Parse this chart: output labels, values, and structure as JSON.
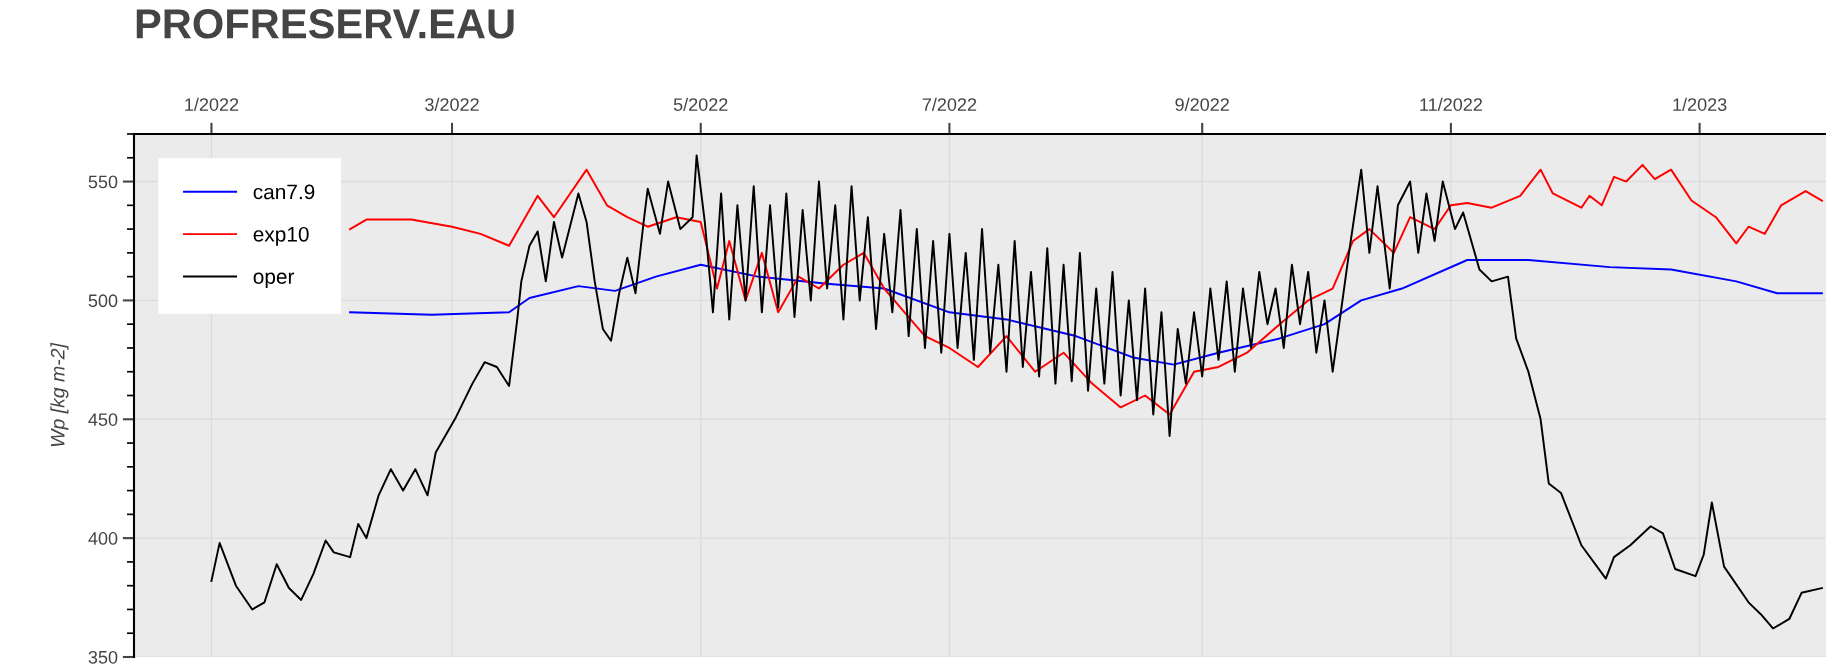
{
  "chart_data": {
    "type": "line",
    "title": "PROFRESERV.EAU",
    "ylabel": "Wp [kg m-2]",
    "xlim": [
      "2021-12-13",
      "2023-02-01"
    ],
    "xticks": [
      {
        "value": "2022-01-01",
        "label": "1/2022"
      },
      {
        "value": "2022-03-01",
        "label": "3/2022"
      },
      {
        "value": "2022-05-01",
        "label": "5/2022"
      },
      {
        "value": "2022-07-01",
        "label": "7/2022"
      },
      {
        "value": "2022-09-01",
        "label": "9/2022"
      },
      {
        "value": "2022-11-01",
        "label": "11/2022"
      },
      {
        "value": "2023-01-01",
        "label": "1/2023"
      }
    ],
    "ylim": [
      350,
      570
    ],
    "yticks": [
      350,
      400,
      450,
      500,
      550
    ],
    "grid": true,
    "legend": "top left",
    "series": [
      {
        "name": "can7.9",
        "color": "#0000ff",
        "x": [
          "2022-02-04",
          "2022-02-24",
          "2022-03-15",
          "2022-03-20",
          "2022-04-01",
          "2022-04-10",
          "2022-04-20",
          "2022-05-01",
          "2022-05-15",
          "2022-06-01",
          "2022-06-15",
          "2022-07-01",
          "2022-07-15",
          "2022-08-01",
          "2022-08-15",
          "2022-08-25",
          "2022-09-05",
          "2022-09-20",
          "2022-10-01",
          "2022-10-10",
          "2022-10-20",
          "2022-11-05",
          "2022-11-20",
          "2022-12-10",
          "2022-12-25",
          "2023-01-10",
          "2023-01-20",
          "2023-01-31"
        ],
        "values": [
          495,
          494,
          495,
          501,
          506,
          504,
          510,
          515,
          510,
          507,
          505,
          495,
          492,
          485,
          476,
          473,
          478,
          484,
          490,
          500,
          505,
          517,
          517,
          514,
          513,
          508,
          503,
          503
        ]
      },
      {
        "name": "exp10",
        "color": "#ff0000",
        "x": [
          "2022-02-04",
          "2022-02-08",
          "2022-02-19",
          "2022-03-01",
          "2022-03-08",
          "2022-03-15",
          "2022-03-22",
          "2022-03-26",
          "2022-04-03",
          "2022-04-08",
          "2022-04-13",
          "2022-04-18",
          "2022-04-25",
          "2022-05-01",
          "2022-05-05",
          "2022-05-08",
          "2022-05-12",
          "2022-05-16",
          "2022-05-20",
          "2022-05-25",
          "2022-05-30",
          "2022-06-05",
          "2022-06-10",
          "2022-06-15",
          "2022-06-20",
          "2022-06-25",
          "2022-07-01",
          "2022-07-08",
          "2022-07-15",
          "2022-07-22",
          "2022-07-29",
          "2022-08-05",
          "2022-08-12",
          "2022-08-18",
          "2022-08-24",
          "2022-08-30",
          "2022-09-05",
          "2022-09-12",
          "2022-09-20",
          "2022-09-27",
          "2022-10-03",
          "2022-10-08",
          "2022-10-12",
          "2022-10-18",
          "2022-10-22",
          "2022-10-28",
          "2022-11-01",
          "2022-11-05",
          "2022-11-11",
          "2022-11-18",
          "2022-11-23",
          "2022-11-26",
          "2022-12-03",
          "2022-12-05",
          "2022-12-08",
          "2022-12-11",
          "2022-12-14",
          "2022-12-18",
          "2022-12-21",
          "2022-12-25",
          "2022-12-30",
          "2023-01-05",
          "2023-01-10",
          "2023-01-13",
          "2023-01-17",
          "2023-01-21",
          "2023-01-27",
          "2023-01-31"
        ],
        "values": [
          530,
          534,
          534,
          531,
          528,
          523,
          544,
          535,
          555,
          540,
          535,
          531,
          535,
          533,
          505,
          525,
          500,
          520,
          495,
          510,
          505,
          515,
          520,
          505,
          495,
          485,
          480,
          472,
          485,
          470,
          478,
          465,
          455,
          460,
          452,
          470,
          472,
          478,
          490,
          500,
          505,
          525,
          530,
          520,
          535,
          530,
          540,
          541,
          539,
          544,
          555,
          545,
          539,
          544,
          540,
          552,
          550,
          557,
          551,
          555,
          542,
          535,
          524,
          531,
          528,
          540,
          546,
          542
        ]
      },
      {
        "name": "oper",
        "color": "#000000",
        "x": [
          "2022-01-01",
          "2022-01-03",
          "2022-01-07",
          "2022-01-11",
          "2022-01-14",
          "2022-01-17",
          "2022-01-20",
          "2022-01-23",
          "2022-01-26",
          "2022-01-29",
          "2022-01-31",
          "2022-02-04",
          "2022-02-06",
          "2022-02-08",
          "2022-02-11",
          "2022-02-14",
          "2022-02-17",
          "2022-02-20",
          "2022-02-23",
          "2022-02-25",
          "2022-03-02",
          "2022-03-06",
          "2022-03-09",
          "2022-03-12",
          "2022-03-15",
          "2022-03-17",
          "2022-03-18",
          "2022-03-20",
          "2022-03-22",
          "2022-03-24",
          "2022-03-26",
          "2022-03-28",
          "2022-04-01",
          "2022-04-03",
          "2022-04-05",
          "2022-04-07",
          "2022-04-09",
          "2022-04-11",
          "2022-04-13",
          "2022-04-15",
          "2022-04-17",
          "2022-04-18",
          "2022-04-21",
          "2022-04-23",
          "2022-04-26",
          "2022-04-29",
          "2022-04-30",
          "2022-05-02",
          "2022-05-04",
          "2022-05-06",
          "2022-05-08",
          "2022-05-10",
          "2022-05-12",
          "2022-05-14",
          "2022-05-16",
          "2022-05-18",
          "2022-05-20",
          "2022-05-22",
          "2022-05-24",
          "2022-05-26",
          "2022-05-28",
          "2022-05-30",
          "2022-06-01",
          "2022-06-03",
          "2022-06-05",
          "2022-06-07",
          "2022-06-09",
          "2022-06-11",
          "2022-06-13",
          "2022-06-15",
          "2022-06-17",
          "2022-06-19",
          "2022-06-21",
          "2022-06-23",
          "2022-06-25",
          "2022-06-27",
          "2022-06-29",
          "2022-07-01",
          "2022-07-03",
          "2022-07-05",
          "2022-07-07",
          "2022-07-09",
          "2022-07-11",
          "2022-07-13",
          "2022-07-15",
          "2022-07-17",
          "2022-07-19",
          "2022-07-21",
          "2022-07-23",
          "2022-07-25",
          "2022-07-27",
          "2022-07-29",
          "2022-07-31",
          "2022-08-02",
          "2022-08-04",
          "2022-08-06",
          "2022-08-08",
          "2022-08-10",
          "2022-08-12",
          "2022-08-14",
          "2022-08-16",
          "2022-08-18",
          "2022-08-20",
          "2022-08-22",
          "2022-08-24",
          "2022-08-26",
          "2022-08-28",
          "2022-08-30",
          "2022-09-01",
          "2022-09-03",
          "2022-09-05",
          "2022-09-07",
          "2022-09-09",
          "2022-09-11",
          "2022-09-13",
          "2022-09-15",
          "2022-09-17",
          "2022-09-19",
          "2022-09-21",
          "2022-09-23",
          "2022-09-25",
          "2022-09-27",
          "2022-09-29",
          "2022-10-01",
          "2022-10-03",
          "2022-10-05",
          "2022-10-07",
          "2022-10-10",
          "2022-10-12",
          "2022-10-14",
          "2022-10-17",
          "2022-10-19",
          "2022-10-22",
          "2022-10-24",
          "2022-10-26",
          "2022-10-28",
          "2022-10-30",
          "2022-11-02",
          "2022-11-04",
          "2022-11-08",
          "2022-11-11",
          "2022-11-15",
          "2022-11-17",
          "2022-11-20",
          "2022-11-23",
          "2022-11-25",
          "2022-11-28",
          "2022-12-03",
          "2022-12-09",
          "2022-12-11",
          "2022-12-15",
          "2022-12-20",
          "2022-12-23",
          "2022-12-26",
          "2022-12-31",
          "2023-01-02",
          "2023-01-04",
          "2023-01-07",
          "2023-01-13",
          "2023-01-16",
          "2023-01-19",
          "2023-01-23",
          "2023-01-26",
          "2023-01-31"
        ],
        "values": [
          382,
          398,
          380,
          370,
          373,
          389,
          379,
          374,
          385,
          399,
          394,
          392,
          406,
          400,
          418,
          429,
          420,
          429,
          418,
          436,
          451,
          465,
          474,
          472,
          464,
          492,
          508,
          523,
          529,
          508,
          533,
          518,
          545,
          533,
          508,
          488,
          483,
          503,
          518,
          503,
          533,
          547,
          528,
          550,
          530,
          535,
          561,
          533,
          495,
          545,
          492,
          540,
          500,
          548,
          495,
          540,
          497,
          545,
          493,
          538,
          500,
          550,
          505,
          540,
          492,
          548,
          500,
          535,
          488,
          528,
          495,
          538,
          485,
          530,
          480,
          525,
          478,
          528,
          480,
          520,
          475,
          530,
          478,
          515,
          470,
          525,
          472,
          512,
          468,
          522,
          465,
          515,
          466,
          520,
          462,
          505,
          465,
          512,
          460,
          500,
          458,
          505,
          452,
          495,
          443,
          488,
          465,
          495,
          468,
          505,
          475,
          508,
          470,
          505,
          480,
          512,
          490,
          505,
          480,
          515,
          490,
          512,
          478,
          500,
          470,
          495,
          520,
          555,
          520,
          548,
          505,
          540,
          550,
          520,
          545,
          525,
          550,
          530,
          537,
          513,
          508,
          510,
          484,
          470,
          450,
          423,
          419,
          397,
          383,
          392,
          397,
          405,
          402,
          387,
          384,
          393,
          415,
          388,
          373,
          368,
          362,
          366,
          377,
          379
        ]
      }
    ]
  }
}
